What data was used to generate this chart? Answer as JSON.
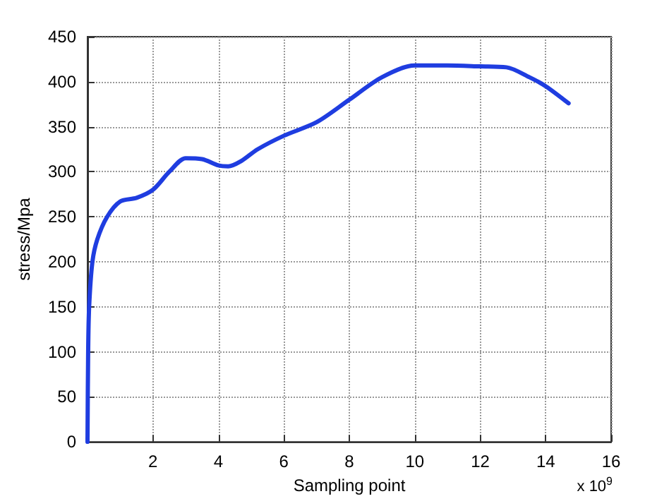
{
  "chart_data": {
    "type": "line",
    "xlabel": "Sampling point",
    "ylabel": "stress/Mpa",
    "annotations": [
      "x 10$^{9}$"
    ],
    "x": [
      0,
      0.02,
      0.05,
      0.15,
      0.3,
      0.6,
      1.0,
      1.5,
      2.0,
      2.5,
      3.0,
      3.5,
      4.0,
      4.3,
      4.7,
      5.2,
      6.0,
      7.0,
      8.0,
      9.0,
      10.0,
      11.0,
      12.0,
      12.8,
      13.5,
      14.0,
      14.7
    ],
    "series": [
      {
        "color": "#1f3de0",
        "values": [
          0,
          100,
          150,
          200,
          225,
          250,
          267,
          271,
          280,
          300,
          315,
          314,
          307,
          306,
          312,
          325,
          340,
          355,
          380,
          405,
          418,
          418,
          417,
          416,
          405,
          395,
          376
        ]
      }
    ],
    "xlim": [
      0,
      16
    ],
    "xticks": [
      2,
      4,
      6,
      8,
      10,
      12,
      14,
      16
    ],
    "ylim": [
      0,
      450
    ],
    "yticks": [
      0,
      50,
      100,
      150,
      200,
      250,
      300,
      350,
      400,
      450
    ],
    "grid": true,
    "marker": "none",
    "line_style": "solid"
  }
}
